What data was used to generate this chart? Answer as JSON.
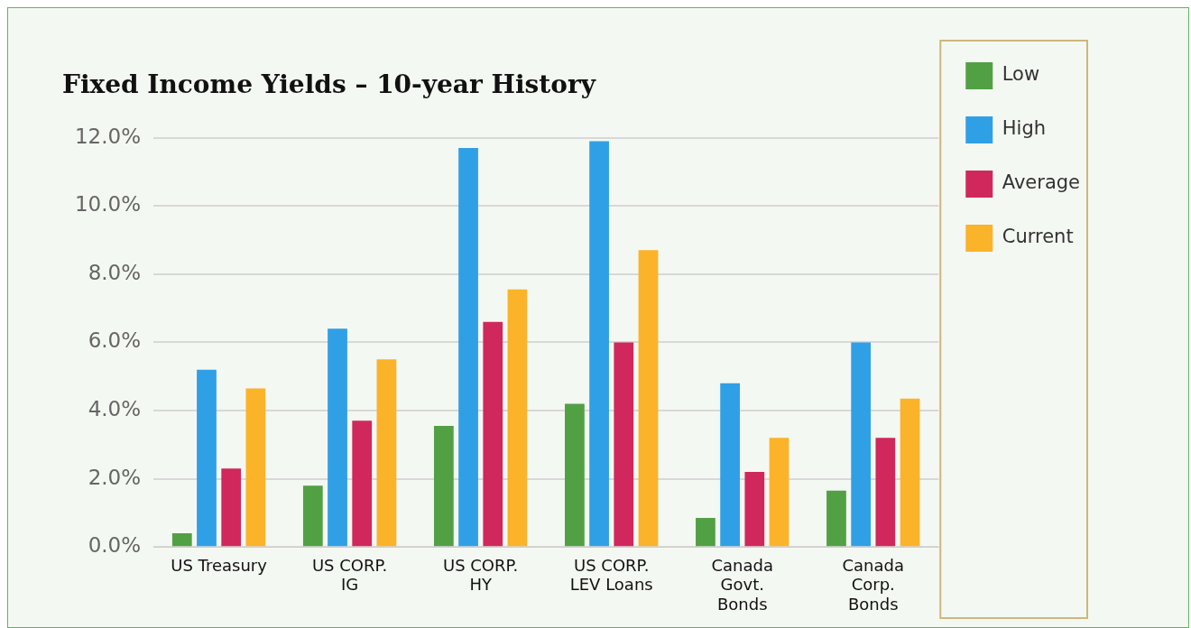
{
  "chart_data": {
    "type": "bar",
    "title": "Fixed Income Yields – 10-year History",
    "categories": [
      "US Treasury",
      "US CORP. IG",
      "US CORP. HY",
      "US CORP. LEV Loans",
      "Canada Govt. Bonds",
      "Canada Corp. Bonds"
    ],
    "series": [
      {
        "name": "Low",
        "color": "#52a044",
        "values": [
          0.4,
          1.8,
          3.55,
          4.2,
          0.85,
          1.65
        ]
      },
      {
        "name": "High",
        "color": "#30a0e6",
        "values": [
          5.2,
          6.4,
          11.7,
          11.9,
          4.8,
          6.0
        ]
      },
      {
        "name": "Average",
        "color": "#d0285c",
        "values": [
          2.3,
          3.7,
          6.6,
          6.0,
          2.2,
          3.2
        ]
      },
      {
        "name": "Current",
        "color": "#fbb32a",
        "values": [
          4.65,
          5.5,
          7.55,
          8.7,
          3.2,
          4.35
        ]
      }
    ],
    "ylim": [
      0,
      12
    ],
    "yticks": [
      {
        "value": 0,
        "label": "0.0%"
      },
      {
        "value": 2,
        "label": "2.0%"
      },
      {
        "value": 4,
        "label": "4.0%"
      },
      {
        "value": 6,
        "label": "6.0%"
      },
      {
        "value": 8,
        "label": "8.0%"
      },
      {
        "value": 10,
        "label": "10.0%"
      },
      {
        "value": 12,
        "label": "12.0%"
      }
    ],
    "grid": "y",
    "legend": "top right"
  }
}
